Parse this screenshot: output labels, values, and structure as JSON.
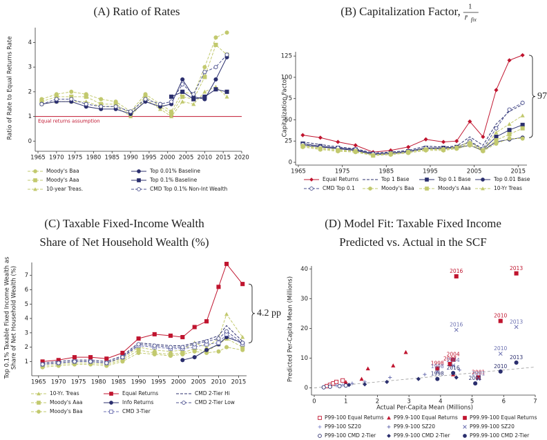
{
  "chart_data": [
    {
      "type": "line",
      "title": "(A) Ratio of Rates",
      "ylabel": "Ratio of Rate to Equal Returns Rate",
      "x": [
        1966,
        1970,
        1974,
        1978,
        1982,
        1986,
        1990,
        1994,
        1998,
        2001,
        2004,
        2007,
        2010,
        2013,
        2016
      ],
      "xlim": [
        1965,
        2020
      ],
      "xticks": [
        1965,
        1970,
        1975,
        1980,
        1985,
        1990,
        1995,
        2000,
        2005,
        2010,
        2015,
        2020
      ],
      "ylim": [
        -0.3,
        4.6
      ],
      "yticks": [
        0,
        1,
        2,
        3,
        4
      ],
      "reference_line": {
        "value": 1,
        "label": "Equal returns assumption",
        "color": "#c0152f"
      },
      "legend": "bottom",
      "series": [
        {
          "name": "Moody's Baa",
          "color": "#c2c96e",
          "marker": "circle",
          "dash": true,
          "values": [
            1.7,
            1.9,
            2.0,
            1.9,
            1.7,
            1.6,
            1.2,
            1.9,
            1.5,
            1.2,
            2.0,
            1.9,
            3.0,
            4.2,
            4.4
          ]
        },
        {
          "name": "Moody's Aaa",
          "color": "#c2c96e",
          "marker": "square",
          "dash": true,
          "values": [
            1.6,
            1.8,
            1.8,
            1.8,
            1.5,
            1.5,
            1.1,
            1.8,
            1.4,
            1.1,
            1.8,
            1.7,
            2.6,
            3.9,
            3.5
          ]
        },
        {
          "name": "10-year Treas.",
          "color": "#c2c96e",
          "marker": "triangle",
          "dash": true,
          "values": [
            1.5,
            1.6,
            1.6,
            1.6,
            1.4,
            1.4,
            1.0,
            1.7,
            1.3,
            1.0,
            1.6,
            1.5,
            2.0,
            2.2,
            1.8
          ]
        },
        {
          "name": "Top 0.01% Baseline",
          "color": "#2b2f6e",
          "marker": "circle",
          "dash": false,
          "values": [
            1.5,
            1.6,
            1.6,
            1.4,
            1.3,
            1.3,
            1.1,
            1.6,
            1.4,
            1.5,
            2.5,
            1.8,
            1.7,
            2.5,
            3.4
          ]
        },
        {
          "name": "Top 0.1% Baseline",
          "color": "#2b2f6e",
          "marker": "square",
          "dash": false,
          "values": [
            null,
            null,
            null,
            null,
            null,
            null,
            null,
            null,
            null,
            1.8,
            2.0,
            1.7,
            1.8,
            2.1,
            2.0
          ]
        },
        {
          "name": "CMD Top 0.1% Non-Int Wealth",
          "color": "#4a4f8e",
          "marker": "ocircle",
          "dash": true,
          "values": [
            1.5,
            1.7,
            1.7,
            1.5,
            1.4,
            1.4,
            1.2,
            1.7,
            1.5,
            1.6,
            2.3,
            1.9,
            2.8,
            3.0,
            3.5
          ]
        }
      ]
    },
    {
      "type": "line",
      "title": "(B) Capitalization Factor,",
      "title_math": {
        "numerator": "1",
        "denominator": "r̄",
        "subscript": "fix"
      },
      "ylabel": "Capitalization Factor",
      "annotation": "97",
      "x": [
        1966,
        1970,
        1974,
        1978,
        1982,
        1986,
        1990,
        1994,
        1998,
        2001,
        2004,
        2007,
        2010,
        2013,
        2016
      ],
      "xlim": [
        1965,
        2017
      ],
      "xticks": [
        1965,
        1975,
        1985,
        1995,
        2005,
        2015
      ],
      "ylim": [
        0,
        130
      ],
      "yticks": [
        0,
        25,
        50,
        75,
        100,
        125
      ],
      "legend": "bottom",
      "series": [
        {
          "name": "Equal Returns",
          "color": "#c0152f",
          "marker": "diamond",
          "dash": false,
          "values": [
            32,
            29,
            24,
            20,
            12,
            14,
            18,
            27,
            24,
            25,
            48,
            30,
            85,
            120,
            126
          ]
        },
        {
          "name": "Top 1 Base",
          "color": "#2b2f6e",
          "marker": "none",
          "dash": true,
          "values": [
            24,
            21,
            18,
            16,
            11,
            12,
            14,
            19,
            18,
            19,
            30,
            20,
            45,
            60,
            68
          ]
        },
        {
          "name": "Top 0.1 Base",
          "color": "#2b2f6e",
          "marker": "square",
          "dash": false,
          "values": [
            22,
            19,
            17,
            15,
            10,
            11,
            13,
            17,
            17,
            18,
            24,
            15,
            30,
            38,
            44
          ]
        },
        {
          "name": "Top 0.01 Base",
          "color": "#2b2f6e",
          "marker": "circle",
          "dash": false,
          "values": [
            20,
            18,
            16,
            14,
            9,
            10,
            12,
            16,
            16,
            17,
            20,
            14,
            24,
            27,
            29
          ]
        },
        {
          "name": "CMD Top 0.1",
          "color": "#4a4f8e",
          "marker": "ocircle",
          "dash": true,
          "values": [
            21,
            18,
            17,
            15,
            10,
            11,
            13,
            17,
            16,
            17,
            25,
            16,
            40,
            62,
            70
          ]
        },
        {
          "name": "Moody's Baa",
          "color": "#c2c96e",
          "marker": "circle",
          "dash": true,
          "values": [
            18,
            15,
            13,
            12,
            8,
            9,
            11,
            14,
            14,
            16,
            20,
            13,
            22,
            28,
            28
          ]
        },
        {
          "name": "Moody's Aaa",
          "color": "#c2c96e",
          "marker": "square",
          "dash": true,
          "values": [
            19,
            16,
            14,
            13,
            8,
            10,
            12,
            15,
            15,
            17,
            22,
            14,
            26,
            33,
            40
          ]
        },
        {
          "name": "10-Yr Treas",
          "color": "#c2c96e",
          "marker": "triangle",
          "dash": true,
          "values": [
            20,
            17,
            15,
            13,
            9,
            10,
            12,
            16,
            16,
            18,
            24,
            15,
            35,
            45,
            55
          ]
        }
      ]
    },
    {
      "type": "line",
      "title": [
        "(C) Taxable Fixed-Income Wealth",
        "Share of Net Household Wealth (%)"
      ],
      "ylabel": [
        "Top 0.1% Taxable Fixed Income Wealth as",
        "Share of Net Household Wealth (%)"
      ],
      "annotation": "4.2 pp",
      "x": [
        1966,
        1970,
        1974,
        1978,
        1982,
        1986,
        1990,
        1994,
        1998,
        2001,
        2004,
        2007,
        2010,
        2012,
        2016
      ],
      "xlim": [
        1964,
        2017
      ],
      "xticks": [
        1965,
        1970,
        1975,
        1980,
        1985,
        1990,
        1995,
        2000,
        2005,
        2010,
        2015
      ],
      "ylim": [
        0.2,
        7.9
      ],
      "yticks": [
        1,
        2,
        3,
        4,
        5,
        6,
        7
      ],
      "legend": "bottom",
      "series": [
        {
          "name": "10-Yr. Treas",
          "color": "#c2c96e",
          "marker": "triangle",
          "dash": true,
          "values": [
            0.8,
            0.9,
            1.0,
            1.0,
            0.9,
            1.2,
            2.0,
            1.8,
            1.7,
            1.8,
            2.3,
            2.0,
            2.6,
            4.3,
            2.7
          ]
        },
        {
          "name": "Moody's Aaa",
          "color": "#c2c96e",
          "marker": "square",
          "dash": true,
          "values": [
            0.7,
            0.8,
            0.9,
            0.9,
            0.8,
            1.1,
            1.8,
            1.6,
            1.5,
            1.6,
            1.9,
            1.7,
            2.2,
            2.6,
            2.0
          ]
        },
        {
          "name": "Moody's Baa",
          "color": "#c2c96e",
          "marker": "circle",
          "dash": true,
          "values": [
            0.6,
            0.7,
            0.8,
            0.8,
            0.7,
            1.0,
            1.6,
            1.5,
            1.4,
            1.5,
            1.7,
            1.6,
            1.7,
            2.0,
            1.8
          ]
        },
        {
          "name": "Equal Returns",
          "color": "#c0152f",
          "marker": "square",
          "dash": false,
          "values": [
            1.0,
            1.1,
            1.3,
            1.3,
            1.2,
            1.6,
            2.6,
            2.9,
            2.8,
            2.7,
            3.4,
            3.8,
            6.2,
            7.8,
            6.4
          ]
        },
        {
          "name": "Info Returns",
          "color": "#2b2f6e",
          "marker": "circle",
          "dash": false,
          "values": [
            null,
            null,
            null,
            null,
            null,
            null,
            null,
            null,
            null,
            1.1,
            1.3,
            1.8,
            2.2,
            2.7,
            2.3
          ]
        },
        {
          "name": "CMD 3-Tier",
          "color": "#6a6fb0",
          "marker": "osquare",
          "dash": true,
          "values": [
            0.8,
            0.9,
            1.0,
            1.0,
            0.9,
            1.3,
            2.1,
            2.0,
            1.9,
            1.9,
            2.0,
            2.2,
            2.3,
            2.9,
            2.2
          ]
        },
        {
          "name": "CMD 2-Tier Hi",
          "color": "#2b2f6e",
          "marker": "none",
          "dash": true,
          "values": [
            0.9,
            1.0,
            1.1,
            1.1,
            1.0,
            1.4,
            2.3,
            2.2,
            2.1,
            2.1,
            2.3,
            2.5,
            2.8,
            3.5,
            2.4
          ]
        },
        {
          "name": "CMD 2-Tier Low",
          "color": "#4a4f8e",
          "marker": "ocircle",
          "dash": true,
          "values": [
            0.8,
            0.9,
            1.0,
            1.0,
            0.9,
            1.3,
            2.2,
            2.1,
            2.0,
            2.0,
            2.2,
            2.4,
            2.6,
            3.1,
            2.3
          ]
        }
      ]
    },
    {
      "type": "scatter",
      "title": [
        "(D) Model Fit: Taxable Fixed Income",
        "Predicted vs. Actual in the SCF"
      ],
      "xlabel": "Actual Per-Capita Mean (Millions)",
      "ylabel": "Predicted Per-Capita Mean (Millions)",
      "xlim": [
        0,
        7
      ],
      "xticks": [
        0,
        1,
        2,
        3,
        4,
        5,
        6,
        7
      ],
      "ylim": [
        -1.5,
        41
      ],
      "yticks": [
        0,
        10,
        20,
        30,
        40
      ],
      "legend": "bottom",
      "series": [
        {
          "name": "P99-100 Equal Returns",
          "color": "#c0152f",
          "marker": "osquare",
          "x": [
            0.4,
            0.5,
            0.6,
            0.7,
            0.9
          ],
          "values": [
            0.6,
            1.0,
            1.5,
            2.0,
            2.5
          ]
        },
        {
          "name": "P99.9-100 Equal Returns",
          "color": "#c0152f",
          "marker": "triangle",
          "x": [
            1.0,
            1.5,
            1.7,
            2.5,
            2.9,
            4.4
          ],
          "values": [
            2.0,
            3.0,
            6.5,
            7.5,
            12,
            4.5
          ]
        },
        {
          "name": "P99.99-100 Equal Returns",
          "color": "#c0152f",
          "marker": "square",
          "x": [
            4.5,
            6.4,
            5.9,
            4.4,
            4.3,
            3.9,
            5.2
          ],
          "values": [
            37.5,
            38.5,
            22.5,
            9.5,
            8.0,
            6.5,
            3.5
          ],
          "point_labels": [
            "2016",
            "2013",
            "2010",
            "2004",
            "2007",
            "1998",
            "2001"
          ]
        },
        {
          "name": "P99-100 SZ20",
          "color": "#8a8fd0",
          "marker": "plus",
          "x": [
            0.3,
            0.5,
            0.7,
            0.9
          ],
          "values": [
            0.3,
            0.5,
            0.8,
            1.0
          ]
        },
        {
          "name": "P99.9-100 SZ20",
          "color": "#6a6fb0",
          "marker": "plus",
          "x": [
            1.2,
            1.6,
            2.4,
            3.5,
            4.6
          ],
          "values": [
            1.5,
            2.0,
            3.5,
            4.5,
            6.0
          ]
        },
        {
          "name": "P99.99-100 SZ20",
          "color": "#6a6fb0",
          "marker": "x",
          "x": [
            4.5,
            6.4,
            5.9,
            4.4,
            3.9,
            5.2
          ],
          "values": [
            19.5,
            20.5,
            11.5,
            7.5,
            5.5,
            3.0
          ],
          "point_labels": [
            "2016",
            "2013",
            "2010",
            "2004",
            "1998",
            "2001"
          ]
        },
        {
          "name": "P99-100 CMD 2-Tier",
          "color": "#2b2f6e",
          "marker": "ocircle",
          "x": [
            0.3,
            0.5,
            0.8,
            1.0
          ],
          "values": [
            0.2,
            0.4,
            0.6,
            0.8
          ]
        },
        {
          "name": "P99.9-100 CMD 2-Tier",
          "color": "#2b2f6e",
          "marker": "diamond",
          "x": [
            1.1,
            1.6,
            2.3,
            3.3,
            4.5
          ],
          "values": [
            1.0,
            1.2,
            2.0,
            3.0,
            3.5
          ]
        },
        {
          "name": "P99.99-100 CMD 2-Tier",
          "color": "#2b2f6e",
          "marker": "circle",
          "x": [
            4.4,
            6.4,
            5.9,
            3.9,
            5.1
          ],
          "values": [
            5.0,
            8.5,
            5.5,
            3.0,
            1.5
          ],
          "point_labels": [
            "2016",
            "2013",
            "2010",
            "1998",
            "2001"
          ]
        }
      ]
    }
  ]
}
